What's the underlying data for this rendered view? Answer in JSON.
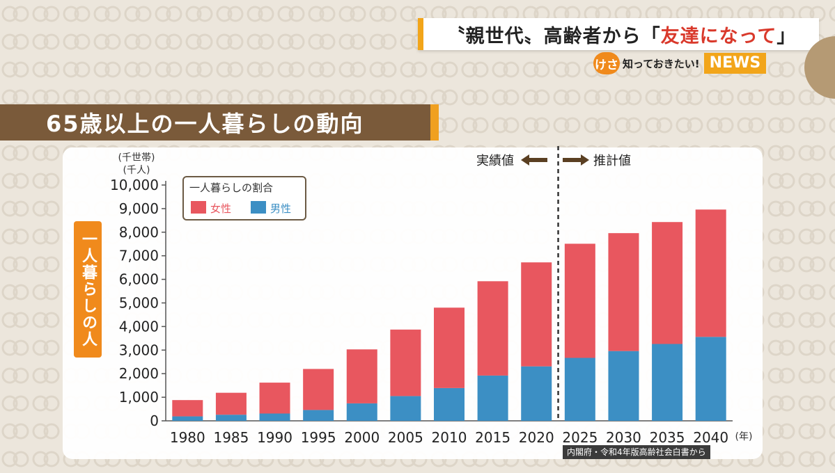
{
  "headline": {
    "prefix": "〝親世代〟高齢者から「",
    "emphasis": "友達になって",
    "suffix": "」"
  },
  "badge": {
    "circle": "けさ",
    "text": "知っておきたい!",
    "news": "NEWS"
  },
  "title": "65歳以上の一人暮らしの動向",
  "y_axis_label_box": "一人暮らしの人",
  "source": "内閣府・令和4年版高齢社会白書から",
  "colors": {
    "female": "#e8575f",
    "male": "#3c8fc4",
    "title_band": "#7a5a3a",
    "accent": "#f08a1c"
  },
  "chart_data": {
    "type": "bar",
    "stacked": true,
    "categories": [
      "1980",
      "1985",
      "1990",
      "1995",
      "2000",
      "2005",
      "2010",
      "2015",
      "2020",
      "2025",
      "2030",
      "2035",
      "2040"
    ],
    "series": [
      {
        "name": "男性",
        "values": [
          190,
          260,
          310,
          460,
          740,
          1050,
          1390,
          1920,
          2310,
          2670,
          2960,
          3260,
          3560
        ]
      },
      {
        "name": "女性",
        "values": [
          690,
          930,
          1310,
          1740,
          2290,
          2820,
          3410,
          4000,
          4410,
          4840,
          5000,
          5170,
          5400
        ]
      }
    ],
    "ylim": [
      0,
      10000
    ],
    "yticks": [
      "0",
      "1,000",
      "2,000",
      "3,000",
      "4,000",
      "5,000",
      "6,000",
      "7,000",
      "8,000",
      "9,000",
      "10,000"
    ],
    "yunit_lines": [
      "(千世帯)",
      "(千人)"
    ],
    "xunit": "(年)",
    "legend_title": "一人暮らしの割合",
    "legend_position": "top-left",
    "divider_after": "2020",
    "label_actual": "実績値",
    "label_projected": "推計値",
    "grid": false
  }
}
